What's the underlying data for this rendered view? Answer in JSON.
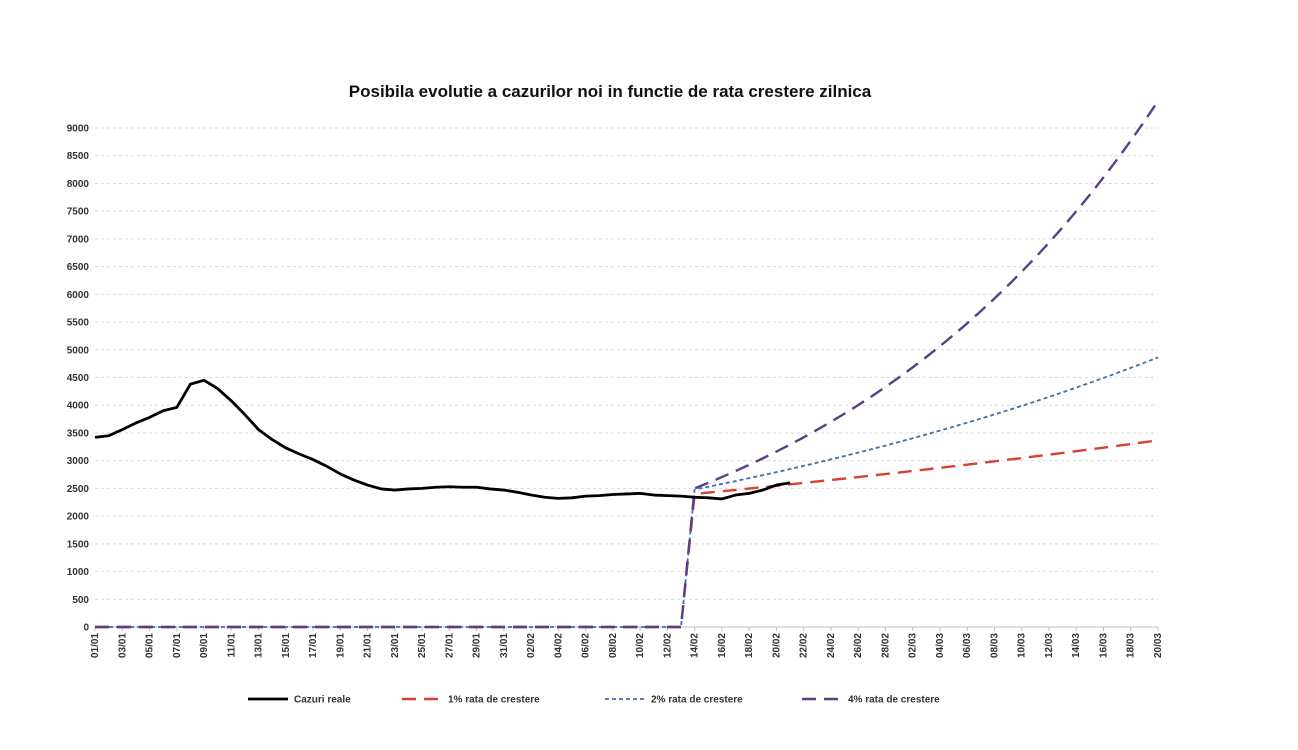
{
  "chart_data": {
    "type": "line",
    "title": "Posibila evolutie a cazurilor noi in functie de rata crestere zilnica",
    "xlabel": "",
    "ylabel": "",
    "ylim": [
      0,
      9000
    ],
    "yticks": [
      0,
      500,
      1000,
      1500,
      2000,
      2500,
      3000,
      3500,
      4000,
      4500,
      5000,
      5500,
      6000,
      6500,
      7000,
      7500,
      8000,
      8500,
      9000
    ],
    "x_tick_labels": [
      "01/01",
      "03/01",
      "05/01",
      "07/01",
      "09/01",
      "11/01",
      "13/01",
      "15/01",
      "17/01",
      "19/01",
      "21/01",
      "23/01",
      "25/01",
      "27/01",
      "29/01",
      "31/01",
      "02/02",
      "04/02",
      "06/02",
      "08/02",
      "10/02",
      "12/02",
      "14/02",
      "16/02",
      "18/02",
      "20/02",
      "22/02",
      "24/02",
      "26/02",
      "28/02",
      "02/03",
      "04/03",
      "06/03",
      "08/03",
      "10/03",
      "12/03",
      "14/03",
      "16/03",
      "18/03",
      "20/03"
    ],
    "grid": "horizontal-dashed",
    "legend_position": "bottom",
    "series": [
      {
        "name": "Cazuri reale",
        "color": "#000000",
        "style": "solid",
        "points": [
          [
            "01/01",
            3420
          ],
          [
            "02/01",
            3450
          ],
          [
            "03/01",
            3560
          ],
          [
            "04/01",
            3680
          ],
          [
            "05/01",
            3780
          ],
          [
            "06/01",
            3900
          ],
          [
            "07/01",
            3960
          ],
          [
            "08/01",
            4380
          ],
          [
            "09/01",
            4450
          ],
          [
            "10/01",
            4300
          ],
          [
            "11/01",
            4080
          ],
          [
            "12/01",
            3830
          ],
          [
            "13/01",
            3560
          ],
          [
            "14/01",
            3380
          ],
          [
            "15/01",
            3230
          ],
          [
            "16/01",
            3120
          ],
          [
            "17/01",
            3020
          ],
          [
            "18/01",
            2900
          ],
          [
            "19/01",
            2760
          ],
          [
            "20/01",
            2650
          ],
          [
            "21/01",
            2560
          ],
          [
            "22/01",
            2490
          ],
          [
            "23/01",
            2470
          ],
          [
            "24/01",
            2490
          ],
          [
            "25/01",
            2500
          ],
          [
            "26/01",
            2520
          ],
          [
            "27/01",
            2530
          ],
          [
            "28/01",
            2520
          ],
          [
            "29/01",
            2520
          ],
          [
            "30/01",
            2490
          ],
          [
            "31/01",
            2470
          ],
          [
            "01/02",
            2430
          ],
          [
            "02/02",
            2380
          ],
          [
            "03/02",
            2340
          ],
          [
            "04/02",
            2320
          ],
          [
            "05/02",
            2330
          ],
          [
            "06/02",
            2360
          ],
          [
            "07/02",
            2370
          ],
          [
            "08/02",
            2390
          ],
          [
            "09/02",
            2400
          ],
          [
            "10/02",
            2410
          ],
          [
            "11/02",
            2380
          ],
          [
            "12/02",
            2370
          ],
          [
            "13/02",
            2360
          ],
          [
            "14/02",
            2340
          ],
          [
            "15/02",
            2330
          ],
          [
            "16/02",
            2310
          ],
          [
            "17/02",
            2380
          ],
          [
            "18/02",
            2410
          ],
          [
            "19/02",
            2470
          ],
          [
            "20/02",
            2560
          ],
          [
            "21/02",
            2600
          ]
        ]
      },
      {
        "name": "1% rata de crestere",
        "color": "#d94032",
        "style": "long-dash",
        "growth": 0.01,
        "start": [
          "14/02",
          2400
        ],
        "leading_zero_until": "13/02",
        "end": "20/03"
      },
      {
        "name": "2% rata de crestere",
        "color": "#3e6fa6",
        "style": "short-dash",
        "growth": 0.02,
        "start": [
          "14/02",
          2480
        ],
        "leading_zero_until": "13/02",
        "end": "20/03"
      },
      {
        "name": "4% rata de crestere",
        "color": "#5b3f86",
        "style": "long-dash",
        "growth": 0.04,
        "start": [
          "14/02",
          2500
        ],
        "leading_zero_until": "13/02",
        "end": "20/03"
      }
    ]
  }
}
